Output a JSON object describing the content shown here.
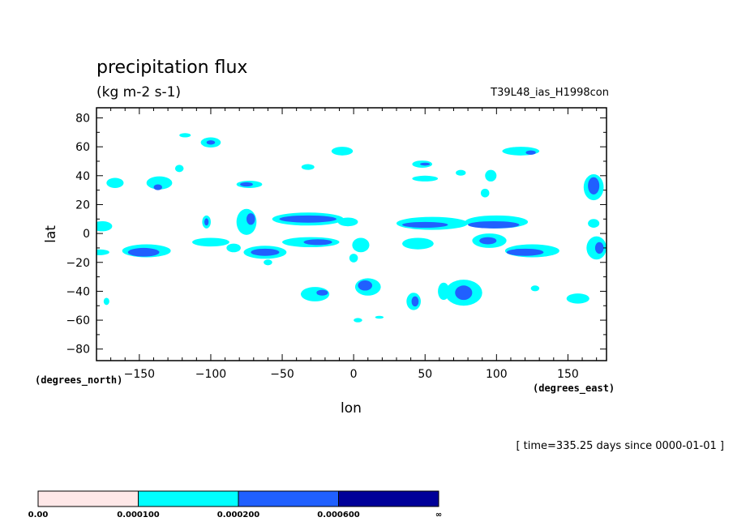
{
  "chart_data": {
    "type": "heatmap",
    "title": "precipitation flux",
    "units": "(kg m-2 s-1)",
    "run_label": "T39L48_ias_H1998con",
    "xlabel": "lon",
    "ylabel": "lat",
    "x_units": "(degrees_east)",
    "y_units": "(degrees_north)",
    "xlim": [
      -180,
      177
    ],
    "ylim": [
      -88,
      87
    ],
    "xticks": [
      -150,
      -100,
      -50,
      0,
      50,
      100,
      150
    ],
    "yticks": [
      80,
      60,
      40,
      20,
      0,
      -20,
      -40,
      -60,
      -80
    ],
    "time_label": "[ time=335.25 days since 0000-01-01 ]",
    "colorbar": {
      "levels": [
        "0.00",
        "0.000100",
        "0.000200",
        "0.000600",
        "∞"
      ],
      "colors": [
        "#ffe8e8",
        "#00ffff",
        "#2060ff",
        "#000099"
      ]
    },
    "regions": [
      {
        "lon": -167,
        "lat": 35,
        "w": 12,
        "h": 7,
        "level": 1
      },
      {
        "lon": -136,
        "lat": 35,
        "w": 18,
        "h": 9,
        "level": 1
      },
      {
        "lon": -137,
        "lat": 32,
        "w": 6,
        "h": 4,
        "level": 2
      },
      {
        "lon": -122,
        "lat": 45,
        "w": 6,
        "h": 5,
        "level": 1
      },
      {
        "lon": -118,
        "lat": 68,
        "w": 8,
        "h": 3,
        "level": 1
      },
      {
        "lon": -100,
        "lat": 63,
        "w": 14,
        "h": 7,
        "level": 1
      },
      {
        "lon": -100,
        "lat": 63,
        "w": 6,
        "h": 3,
        "level": 2
      },
      {
        "lon": -73,
        "lat": 34,
        "w": 18,
        "h": 5,
        "level": 1
      },
      {
        "lon": -75,
        "lat": 34,
        "w": 9,
        "h": 3,
        "level": 2
      },
      {
        "lon": -32,
        "lat": 46,
        "w": 9,
        "h": 4,
        "level": 1
      },
      {
        "lon": -8,
        "lat": 57,
        "w": 15,
        "h": 6,
        "level": 1
      },
      {
        "lon": 48,
        "lat": 48,
        "w": 14,
        "h": 5,
        "level": 1
      },
      {
        "lon": 50,
        "lat": 48,
        "w": 7,
        "h": 2,
        "level": 2
      },
      {
        "lon": 50,
        "lat": 38,
        "w": 18,
        "h": 4,
        "level": 1
      },
      {
        "lon": 75,
        "lat": 42,
        "w": 7,
        "h": 4,
        "level": 1
      },
      {
        "lon": 117,
        "lat": 57,
        "w": 26,
        "h": 6,
        "level": 1
      },
      {
        "lon": 124,
        "lat": 56,
        "w": 7,
        "h": 3,
        "level": 2
      },
      {
        "lon": 168,
        "lat": 32,
        "w": 14,
        "h": 18,
        "level": 1
      },
      {
        "lon": 168,
        "lat": 33,
        "w": 8,
        "h": 12,
        "level": 2
      },
      {
        "lon": 96,
        "lat": 40,
        "w": 8,
        "h": 8,
        "level": 1
      },
      {
        "lon": 92,
        "lat": 28,
        "w": 6,
        "h": 6,
        "level": 1
      },
      {
        "lon": -176,
        "lat": 5,
        "w": 14,
        "h": 7,
        "level": 1
      },
      {
        "lon": -145,
        "lat": -12,
        "w": 34,
        "h": 9,
        "level": 1
      },
      {
        "lon": -147,
        "lat": -13,
        "w": 22,
        "h": 6,
        "level": 2
      },
      {
        "lon": -178,
        "lat": -13,
        "w": 14,
        "h": 4,
        "level": 1
      },
      {
        "lon": -103,
        "lat": 8,
        "w": 6,
        "h": 9,
        "level": 1
      },
      {
        "lon": -103,
        "lat": 8,
        "w": 3,
        "h": 5,
        "level": 2
      },
      {
        "lon": -75,
        "lat": 8,
        "w": 14,
        "h": 18,
        "level": 1
      },
      {
        "lon": -72,
        "lat": 10,
        "w": 6,
        "h": 8,
        "level": 2
      },
      {
        "lon": -100,
        "lat": -6,
        "w": 26,
        "h": 6,
        "level": 1
      },
      {
        "lon": -62,
        "lat": -13,
        "w": 30,
        "h": 9,
        "level": 1
      },
      {
        "lon": -62,
        "lat": -13,
        "w": 20,
        "h": 5,
        "level": 2
      },
      {
        "lon": -84,
        "lat": -10,
        "w": 10,
        "h": 6,
        "level": 1
      },
      {
        "lon": -32,
        "lat": 10,
        "w": 50,
        "h": 9,
        "level": 1
      },
      {
        "lon": -32,
        "lat": 10,
        "w": 40,
        "h": 5,
        "level": 2
      },
      {
        "lon": -30,
        "lat": -6,
        "w": 40,
        "h": 7,
        "level": 1
      },
      {
        "lon": -25,
        "lat": -6,
        "w": 20,
        "h": 4,
        "level": 2
      },
      {
        "lon": -4,
        "lat": 8,
        "w": 14,
        "h": 6,
        "level": 1
      },
      {
        "lon": 5,
        "lat": -8,
        "w": 12,
        "h": 10,
        "level": 1
      },
      {
        "lon": 0,
        "lat": -17,
        "w": 6,
        "h": 6,
        "level": 1
      },
      {
        "lon": 55,
        "lat": 7,
        "w": 50,
        "h": 9,
        "level": 1
      },
      {
        "lon": 50,
        "lat": 6,
        "w": 32,
        "h": 4,
        "level": 2
      },
      {
        "lon": 100,
        "lat": 8,
        "w": 44,
        "h": 9,
        "level": 1
      },
      {
        "lon": 98,
        "lat": 6,
        "w": 36,
        "h": 5,
        "level": 2
      },
      {
        "lon": 45,
        "lat": -7,
        "w": 22,
        "h": 8,
        "level": 1
      },
      {
        "lon": 95,
        "lat": -5,
        "w": 24,
        "h": 10,
        "level": 1
      },
      {
        "lon": 94,
        "lat": -5,
        "w": 12,
        "h": 5,
        "level": 2
      },
      {
        "lon": 125,
        "lat": -12,
        "w": 38,
        "h": 9,
        "level": 1
      },
      {
        "lon": 120,
        "lat": -13,
        "w": 26,
        "h": 5,
        "level": 2
      },
      {
        "lon": 170,
        "lat": -10,
        "w": 14,
        "h": 16,
        "level": 1
      },
      {
        "lon": 172,
        "lat": -10,
        "w": 6,
        "h": 8,
        "level": 2
      },
      {
        "lon": 168,
        "lat": 7,
        "w": 8,
        "h": 6,
        "level": 1
      },
      {
        "lon": -60,
        "lat": -20,
        "w": 6,
        "h": 4,
        "level": 1
      },
      {
        "lon": -27,
        "lat": -42,
        "w": 20,
        "h": 10,
        "level": 1
      },
      {
        "lon": -22,
        "lat": -41,
        "w": 8,
        "h": 4,
        "level": 2
      },
      {
        "lon": 10,
        "lat": -37,
        "w": 18,
        "h": 12,
        "level": 1
      },
      {
        "lon": 8,
        "lat": -36,
        "w": 10,
        "h": 7,
        "level": 2
      },
      {
        "lon": 42,
        "lat": -47,
        "w": 10,
        "h": 12,
        "level": 1
      },
      {
        "lon": 43,
        "lat": -47,
        "w": 5,
        "h": 7,
        "level": 2
      },
      {
        "lon": 77,
        "lat": -41,
        "w": 26,
        "h": 18,
        "level": 1
      },
      {
        "lon": 77,
        "lat": -41,
        "w": 12,
        "h": 10,
        "level": 2
      },
      {
        "lon": 63,
        "lat": -40,
        "w": 8,
        "h": 12,
        "level": 1
      },
      {
        "lon": 127,
        "lat": -38,
        "w": 6,
        "h": 4,
        "level": 1
      },
      {
        "lon": 157,
        "lat": -45,
        "w": 16,
        "h": 7,
        "level": 1
      },
      {
        "lon": -173,
        "lat": -47,
        "w": 4,
        "h": 5,
        "level": 1
      },
      {
        "lon": 3,
        "lat": -60,
        "w": 6,
        "h": 3,
        "level": 1
      },
      {
        "lon": 18,
        "lat": -58,
        "w": 6,
        "h": 2,
        "level": 1
      }
    ]
  }
}
